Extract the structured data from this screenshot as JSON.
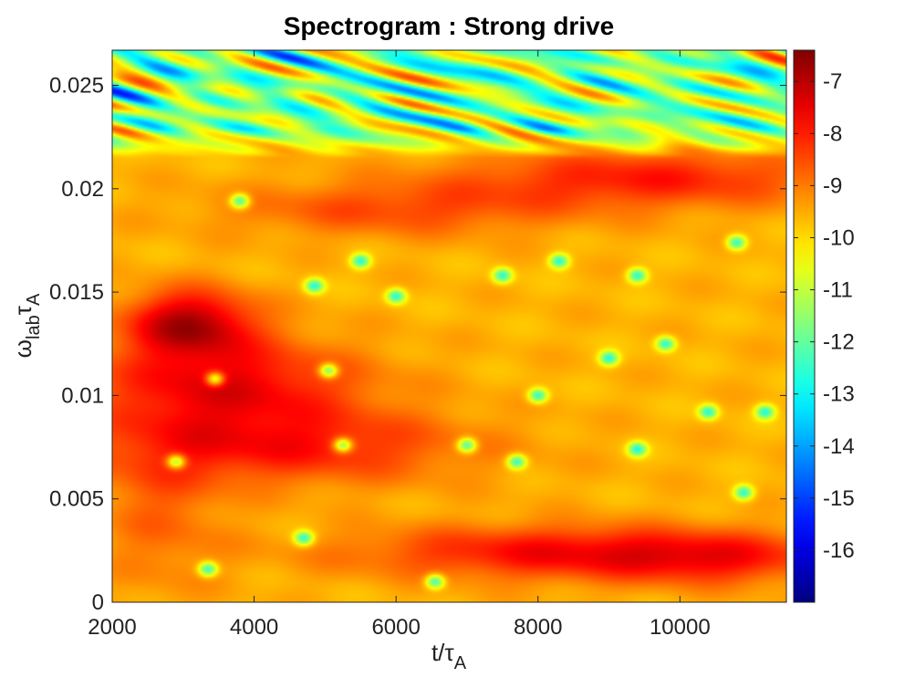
{
  "chart_data": {
    "type": "heatmap",
    "title": "Spectrogram : Strong drive",
    "xlabel": {
      "base": "t/",
      "symbol": "τ",
      "sub": "A"
    },
    "ylabel": {
      "symbol": "ω",
      "sub1": "lab",
      "symbol2": "τ",
      "sub2": "A"
    },
    "xlim": [
      2000,
      11500
    ],
    "ylim": [
      0,
      0.0267
    ],
    "xticks": [
      2000,
      4000,
      6000,
      8000,
      10000
    ],
    "xtick_labels": [
      "2000",
      "4000",
      "6000",
      "8000",
      "10000"
    ],
    "yticks": [
      0,
      0.005,
      0.01,
      0.015,
      0.02,
      0.025
    ],
    "ytick_labels": [
      "0",
      "0.005",
      "0.01",
      "0.015",
      "0.02",
      "0.025"
    ],
    "colorbar": {
      "range": [
        -17,
        -6.4
      ],
      "ticks": [
        -16,
        -15,
        -14,
        -13,
        -12,
        -11,
        -10,
        -9,
        -8,
        -7
      ],
      "tick_labels": [
        "-16",
        "-15",
        "-14",
        "-13",
        "-12",
        "-11",
        "-10",
        "-9",
        "-8",
        "-7"
      ],
      "colormap": "jet"
    },
    "field": {
      "background_level": -9.6,
      "features": [
        {
          "x": 3100,
          "y": 0.0135,
          "sx": 900,
          "sy": 0.0016,
          "amp": 2.6
        },
        {
          "x": 3600,
          "y": 0.0105,
          "sx": 1900,
          "sy": 0.0022,
          "amp": 2.0
        },
        {
          "x": 4400,
          "y": 0.0075,
          "sx": 2600,
          "sy": 0.0018,
          "amp": 1.6
        },
        {
          "x": 8500,
          "y": 0.0024,
          "sx": 3000,
          "sy": 0.0013,
          "amp": 1.9
        },
        {
          "x": 10500,
          "y": 0.002,
          "sx": 1500,
          "sy": 0.0012,
          "amp": 1.0
        },
        {
          "x": 9500,
          "y": 0.0205,
          "sx": 2600,
          "sy": 0.0014,
          "amp": 1.6
        },
        {
          "x": 6000,
          "y": 0.019,
          "sx": 2400,
          "sy": 0.0013,
          "amp": 1.1
        },
        {
          "x": 2700,
          "y": 0.0045,
          "sx": 900,
          "sy": 0.004,
          "amp": 0.8
        }
      ],
      "noise_region_ymin": 0.0215,
      "noise_level": -11.6,
      "holes": [
        {
          "x": 3800,
          "y": 0.0194
        },
        {
          "x": 3450,
          "y": 0.0108
        },
        {
          "x": 5050,
          "y": 0.0112
        },
        {
          "x": 2900,
          "y": 0.0068
        },
        {
          "x": 5250,
          "y": 0.0076
        },
        {
          "x": 4700,
          "y": 0.0031
        },
        {
          "x": 3350,
          "y": 0.0016
        },
        {
          "x": 6550,
          "y": 0.001
        },
        {
          "x": 4850,
          "y": 0.0153
        },
        {
          "x": 5500,
          "y": 0.0165
        },
        {
          "x": 6000,
          "y": 0.0148
        },
        {
          "x": 7500,
          "y": 0.0158
        },
        {
          "x": 8300,
          "y": 0.0165
        },
        {
          "x": 9400,
          "y": 0.0158
        },
        {
          "x": 10800,
          "y": 0.0174
        },
        {
          "x": 8000,
          "y": 0.01
        },
        {
          "x": 7000,
          "y": 0.0076
        },
        {
          "x": 7700,
          "y": 0.0068
        },
        {
          "x": 9400,
          "y": 0.0074
        },
        {
          "x": 10900,
          "y": 0.0053
        },
        {
          "x": 9800,
          "y": 0.0125
        },
        {
          "x": 9000,
          "y": 0.0118
        },
        {
          "x": 10400,
          "y": 0.0092
        },
        {
          "x": 11200,
          "y": 0.0092
        }
      ]
    }
  }
}
